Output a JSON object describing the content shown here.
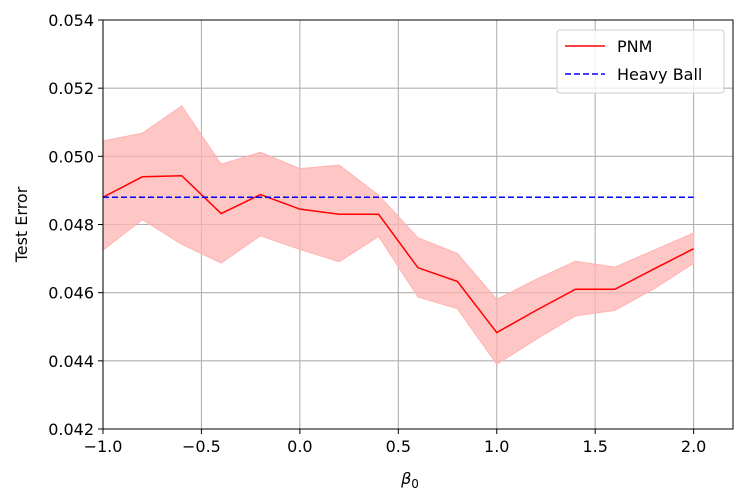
{
  "chart_data": {
    "type": "line",
    "title": "",
    "xlabel": "β",
    "xlabel_subscript": "0",
    "ylabel": "Test Error",
    "xlim": [
      -1.0,
      2.2
    ],
    "ylim": [
      0.042,
      0.054
    ],
    "xticks": [
      -1.0,
      -0.5,
      0.0,
      0.5,
      1.0,
      1.5,
      2.0
    ],
    "xtick_labels": [
      "−1.0",
      "−0.5",
      "0.0",
      "0.5",
      "1.0",
      "1.5",
      "2.0"
    ],
    "yticks": [
      0.042,
      0.044,
      0.046,
      0.048,
      0.05,
      0.052,
      0.054
    ],
    "ytick_labels": [
      "0.042",
      "0.044",
      "0.046",
      "0.048",
      "0.050",
      "0.052",
      "0.054"
    ],
    "grid": true,
    "legend_position": "top-right",
    "series": [
      {
        "name": "PNM",
        "style": "solid",
        "color": "#ff0000",
        "band_color": "#ffb3b3",
        "x": [
          -1.0,
          -0.8,
          -0.6,
          -0.4,
          -0.2,
          0.0,
          0.2,
          0.4,
          0.6,
          0.8,
          1.0,
          1.2,
          1.4,
          1.6,
          1.8,
          2.0
        ],
        "y": [
          0.0488,
          0.0494,
          0.04943,
          0.04832,
          0.04888,
          0.04845,
          0.0483,
          0.0483,
          0.04673,
          0.04633,
          0.04483,
          0.04548,
          0.0461,
          0.0461,
          0.0467,
          0.04729
        ],
        "upper": [
          0.05045,
          0.05068,
          0.05148,
          0.04977,
          0.05012,
          0.04964,
          0.04974,
          0.04886,
          0.04761,
          0.04715,
          0.0458,
          0.04639,
          0.04692,
          0.04675,
          0.04725,
          0.04775
        ],
        "lower": [
          0.04725,
          0.04814,
          0.04742,
          0.04687,
          0.04767,
          0.04727,
          0.04691,
          0.04765,
          0.04587,
          0.04553,
          0.0439,
          0.04463,
          0.04532,
          0.04548,
          0.04612,
          0.04686
        ]
      },
      {
        "name": "Heavy Ball",
        "style": "dashed",
        "color": "#0000ff",
        "x": [
          -1.0,
          2.0
        ],
        "y": [
          0.0488,
          0.0488
        ]
      }
    ]
  }
}
